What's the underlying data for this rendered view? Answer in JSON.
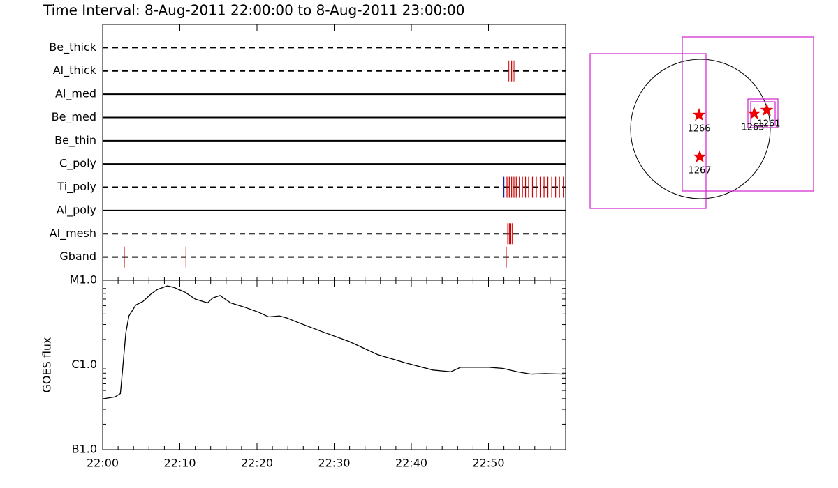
{
  "chart_data": [
    {
      "type": "event",
      "title": "Time Interval:  8-Aug-2011 22:00:00 to  8-Aug-2011 23:00:00",
      "xlim": [
        0,
        60
      ],
      "series": [
        {
          "name": "Be_thick",
          "line": "dashed",
          "color": "#cc0000",
          "values": []
        },
        {
          "name": "Al_thick",
          "line": "dashed",
          "color": "#cc0000",
          "values": [
            52.6,
            52.8,
            53.0,
            53.2,
            53.4
          ]
        },
        {
          "name": "Al_med",
          "line": "solid",
          "color": "#cc0000",
          "values": []
        },
        {
          "name": "Be_med",
          "line": "solid",
          "color": "#cc0000",
          "values": []
        },
        {
          "name": "Be_thin",
          "line": "solid",
          "color": "#cc0000",
          "values": []
        },
        {
          "name": "C_poly",
          "line": "solid",
          "color": "#cc0000",
          "values": []
        },
        {
          "name": "Ti_poly",
          "line": "dashed",
          "color": "#cc0000",
          "first_color": "#1a1aaa",
          "values": [
            52.0,
            52.4,
            52.7,
            53.0,
            53.3,
            53.6,
            54.0,
            54.4,
            54.8,
            55.2,
            55.7,
            56.2,
            56.7,
            57.2,
            57.7,
            58.2,
            58.7,
            59.2,
            59.7
          ]
        },
        {
          "name": "Al_poly",
          "line": "solid",
          "color": "#cc0000",
          "values": []
        },
        {
          "name": "Al_mesh",
          "line": "dashed",
          "color": "#cc0000",
          "values": [
            52.5,
            52.7,
            52.9,
            53.1
          ]
        },
        {
          "name": "Gband",
          "line": "dashed",
          "color": "#cc0000",
          "values": [
            2.8,
            10.8,
            52.3
          ]
        }
      ]
    },
    {
      "type": "line",
      "ylabel": "GOES flux",
      "ylog": true,
      "color": "#000000",
      "xlim": [
        0,
        60
      ],
      "xticks": [
        {
          "value": 0,
          "label": "22:00"
        },
        {
          "value": 10,
          "label": "22:10"
        },
        {
          "value": 20,
          "label": "22:20"
        },
        {
          "value": 30,
          "label": "22:30"
        },
        {
          "value": 40,
          "label": "22:40"
        },
        {
          "value": 50,
          "label": "22:50"
        }
      ],
      "ylim": [
        1e-07,
        1e-05
      ],
      "yticks": [
        {
          "value": 1e-07,
          "label": "B1.0"
        },
        {
          "value": 1e-06,
          "label": "C1.0"
        },
        {
          "value": 1e-05,
          "label": "M1.0"
        }
      ],
      "x": [
        0,
        1.6,
        2.3,
        2.6,
        3.0,
        3.4,
        4.3,
        5.2,
        6.2,
        7.1,
        8.4,
        9.3,
        10.7,
        12.0,
        13.6,
        14.3,
        15.2,
        16.6,
        18.4,
        20.2,
        21.5,
        22.9,
        23.8,
        25.6,
        28.3,
        31.9,
        35.6,
        39.2,
        42.8,
        45.1,
        46.4,
        50.0,
        51.9,
        53.7,
        55.5,
        57.3,
        59.8
      ],
      "values": [
        3.98e-07,
        4.2e-07,
        4.6e-07,
        9.1e-07,
        2.4e-06,
        3.8e-06,
        5.1e-06,
        5.6e-06,
        6.8e-06,
        7.8e-06,
        8.6e-06,
        8.2e-06,
        7.2e-06,
        6e-06,
        5.4e-06,
        6.2e-06,
        6.6e-06,
        5.4e-06,
        4.8e-06,
        4.2e-06,
        3.7e-06,
        3.8e-06,
        3.6e-06,
        3.1e-06,
        2.5e-06,
        1.9e-06,
        1.33e-06,
        1.06e-06,
        8.7e-07,
        8.3e-07,
        9.4e-07,
        9.4e-07,
        9.1e-07,
        8.3e-07,
        7.8e-07,
        7.9e-07,
        7.8e-07
      ]
    }
  ],
  "map": {
    "regions": [
      "1266",
      "1267",
      "1263",
      "1261"
    ]
  }
}
